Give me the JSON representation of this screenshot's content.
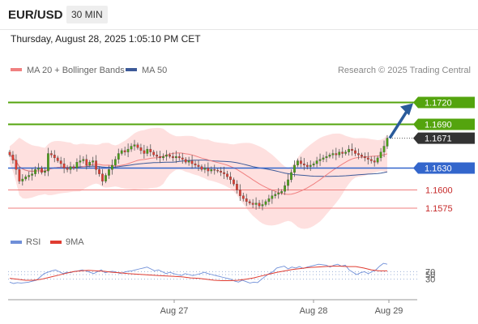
{
  "header": {
    "pair": "EUR/USD",
    "timeframe": "30 MIN",
    "datetime": "Thursday, August 28, 2025 1:05:10 PM CET"
  },
  "legend": {
    "ma20": "MA 20 + Bollinger Bands",
    "ma50": "MA 50",
    "credit": "Research © 2025 Trading Central"
  },
  "rsi_legend": {
    "rsi": "RSI",
    "ma9": "9MA"
  },
  "colors": {
    "resistance": "#54a40e",
    "support": "#ef7c7c",
    "pivot": "#3366cc",
    "current": "#333333",
    "ma20": "#f08080",
    "ma50": "#3d5a99",
    "bollinger_fill": "#fdd6d4",
    "candle_up": "#4aa016",
    "candle_down": "#e03c31",
    "arrow": "#2a5b9b",
    "rsi_line": "#6f8fd8",
    "rsi_ma": "#e03c31"
  },
  "chart_data": {
    "type": "candlestick",
    "y_range": [
      1.1555,
      1.1755
    ],
    "x_labels": [
      "Aug 27",
      "Aug 28",
      "Aug 29"
    ],
    "levels": [
      {
        "value": 1.172,
        "label": "1.1720",
        "kind": "resistance"
      },
      {
        "value": 1.169,
        "label": "1.1690",
        "kind": "resistance"
      },
      {
        "value": 1.1671,
        "label": "1.1671",
        "kind": "current"
      },
      {
        "value": 1.163,
        "label": "1.1630",
        "kind": "pivot"
      },
      {
        "value": 1.16,
        "label": "1.1600",
        "kind": "support"
      },
      {
        "value": 1.1575,
        "label": "1.1575",
        "kind": "support"
      }
    ],
    "closes": [
      1.1648,
      1.1641,
      1.1628,
      1.1612,
      1.1615,
      1.1618,
      1.162,
      1.1622,
      1.1628,
      1.163,
      1.1624,
      1.1626,
      1.165,
      1.1648,
      1.1644,
      1.164,
      1.1636,
      1.163,
      1.1628,
      1.1632,
      1.163,
      1.1638,
      1.164,
      1.1642,
      1.1634,
      1.1638,
      1.164,
      1.1628,
      1.1622,
      1.1612,
      1.162,
      1.1628,
      1.1634,
      1.1642,
      1.165,
      1.1654,
      1.1652,
      1.1656,
      1.166,
      1.1662,
      1.1658,
      1.1654,
      1.165,
      1.1656,
      1.1652,
      1.1648,
      1.1646,
      1.1644,
      1.1646,
      1.1648,
      1.1646,
      1.1644,
      1.1646,
      1.1644,
      1.1642,
      1.1638,
      1.164,
      1.1636,
      1.1634,
      1.1632,
      1.1628,
      1.163,
      1.1626,
      1.1628,
      1.1627,
      1.1626,
      1.1624,
      1.1622,
      1.1618,
      1.1614,
      1.1608,
      1.16,
      1.1592,
      1.1588,
      1.1584,
      1.1582,
      1.158,
      1.1582,
      1.1578,
      1.158,
      1.1584,
      1.1588,
      1.1592,
      1.1594,
      1.1596,
      1.1598,
      1.1606,
      1.1614,
      1.1624,
      1.1634,
      1.164,
      1.1636,
      1.1634,
      1.1632,
      1.1634,
      1.1636,
      1.164,
      1.1642,
      1.1644,
      1.1646,
      1.1648,
      1.165,
      1.1648,
      1.1652,
      1.165,
      1.1652,
      1.1656,
      1.1654,
      1.165,
      1.1648,
      1.1646,
      1.1644,
      1.1642,
      1.164,
      1.1638,
      1.1644,
      1.1652,
      1.166,
      1.1671
    ],
    "rsi": {
      "levels": [
        70,
        50,
        30
      ],
      "values": [
        34,
        31,
        33,
        32,
        33,
        34,
        36,
        38,
        45,
        52,
        55,
        58,
        60,
        56,
        52,
        55,
        54,
        57,
        58,
        60,
        58,
        55,
        52,
        56,
        60,
        54,
        56,
        57,
        55,
        52,
        55,
        57,
        58,
        60,
        62,
        64,
        66,
        62,
        58,
        60,
        56,
        52,
        55,
        52,
        50,
        48,
        52,
        50,
        48,
        50,
        52,
        55,
        52,
        50,
        48,
        46,
        44,
        42,
        40,
        36,
        34,
        38,
        35,
        32,
        34,
        33,
        40,
        46,
        52,
        56,
        64,
        66,
        68,
        62,
        66,
        64,
        67,
        63,
        66,
        68,
        70,
        72,
        71,
        70,
        66,
        70,
        72,
        68,
        70,
        60,
        55,
        50,
        54,
        56,
        52,
        56,
        60,
        68,
        74,
        72
      ],
      "ma9": [
        42,
        40,
        38,
        38,
        40,
        44,
        48,
        52,
        56,
        58,
        59,
        58,
        57,
        55,
        54,
        52,
        51,
        50,
        49,
        48,
        47,
        46,
        45,
        43,
        42,
        40,
        38,
        37,
        37,
        38,
        40,
        43,
        47,
        51,
        55,
        58,
        61,
        63,
        65,
        66,
        67,
        68,
        68,
        67,
        67,
        64,
        60,
        58,
        58
      ]
    }
  }
}
